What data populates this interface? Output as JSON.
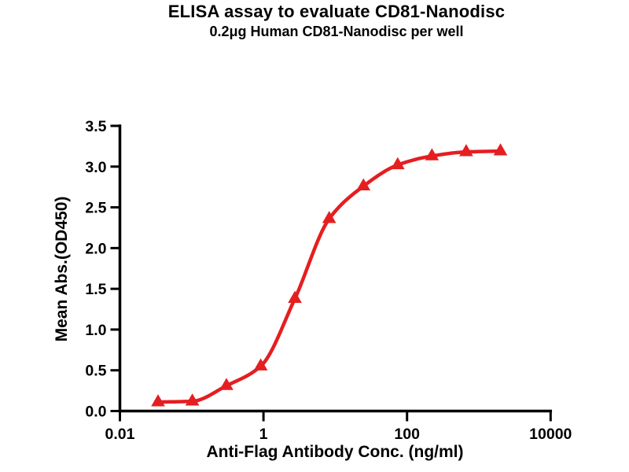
{
  "chart_data": {
    "type": "scatter",
    "title": "ELISA assay to evaluate CD81-Nanodisc",
    "subtitle": "0.2μg Human CD81-Nanodisc per well",
    "xlabel": "Anti-Flag Antibody Conc. (ng/ml)",
    "ylabel": "Mean Abs.(OD450)",
    "x_scale": "log",
    "xlim": [
      0.01,
      10000
    ],
    "ylim": [
      0.0,
      3.5
    ],
    "x_ticks": [
      "0.01",
      "1",
      "100",
      "10000"
    ],
    "y_ticks": [
      "0.0",
      "0.5",
      "1.0",
      "1.5",
      "2.0",
      "2.5",
      "3.0",
      "3.5"
    ],
    "x": [
      0.034,
      0.102,
      0.305,
      0.915,
      2.74,
      8.23,
      24.7,
      74.1,
      222.2,
      666.7,
      2000
    ],
    "y": [
      0.11,
      0.12,
      0.31,
      0.55,
      1.38,
      2.36,
      2.76,
      3.02,
      3.13,
      3.18,
      3.19
    ],
    "marker": "triangle-up",
    "curve": "smooth sigmoid fit through points",
    "grid": false,
    "legend": false,
    "colors": {
      "series": "#e51e20",
      "axis": "#000000",
      "text": "#000000",
      "background": "#ffffff"
    }
  }
}
